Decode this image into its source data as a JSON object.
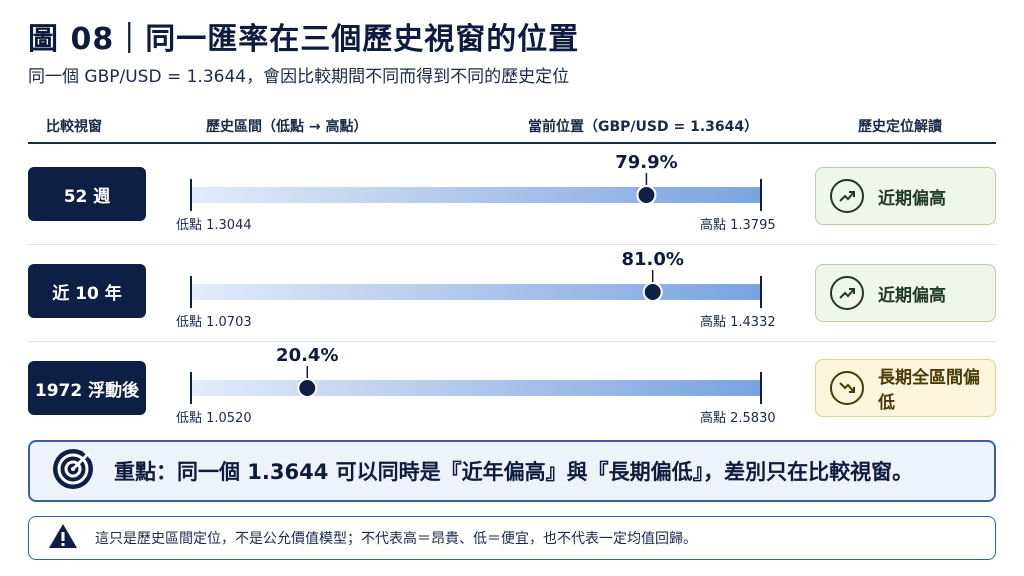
{
  "header": {
    "title": "圖 08｜同一匯率在三個歷史視窗的位置",
    "subtitle": "同一個 GBP/USD = 1.3644，會因比較期間不同而得到不同的歷史定位"
  },
  "columns": {
    "window": "比較視窗",
    "range": "歷史區間（低點 → 高點）",
    "position": "當前位置（GBP/USD = 1.3644）",
    "reading": "歷史定位解讀"
  },
  "rows": [
    {
      "label": "52 週",
      "low_text": "低點 1.3044",
      "high_text": "高點 1.3795",
      "pct_text": "79.9%",
      "status": "近期偏高",
      "trend": "up"
    },
    {
      "label": "近 10 年",
      "low_text": "低點 1.0703",
      "high_text": "高點 1.4332",
      "pct_text": "81.0%",
      "status": "近期偏高",
      "trend": "up"
    },
    {
      "label": "1972 浮動後",
      "low_text": "低點 1.0520",
      "high_text": "高點 2.5830",
      "pct_text": "20.4%",
      "status": "長期全區間偏低",
      "trend": "down"
    }
  ],
  "keypoint": {
    "icon": "target-icon",
    "text": "重點：同一個 1.3644 可以同時是『近年偏高』與『長期偏低』，差別只在比較視窗。"
  },
  "note": {
    "icon": "warning-icon",
    "text": "這只是歷史區間定位，不是公允價值模型；不代表高＝昂貴、低＝便宜，也不代表一定均值回歸。"
  },
  "colors": {
    "navy": "#0d1f45",
    "bar_light": "#e3ebf8",
    "bar_dark": "#7aa3e0",
    "up_green": "#1f3a22",
    "down_gold": "#4a3a05"
  },
  "chart_data": {
    "type": "bar",
    "title": "圖 08｜同一匯率在三個歷史視窗的位置",
    "current_value": 1.3644,
    "categories": [
      "52 週",
      "近 10 年",
      "1972 浮動後"
    ],
    "series": [
      {
        "low": 1.3044,
        "high": 1.3795,
        "position_pct": 79.9
      },
      {
        "low": 1.0703,
        "high": 1.4332,
        "position_pct": 81.0
      },
      {
        "low": 1.052,
        "high": 2.583,
        "position_pct": 20.4
      }
    ]
  }
}
